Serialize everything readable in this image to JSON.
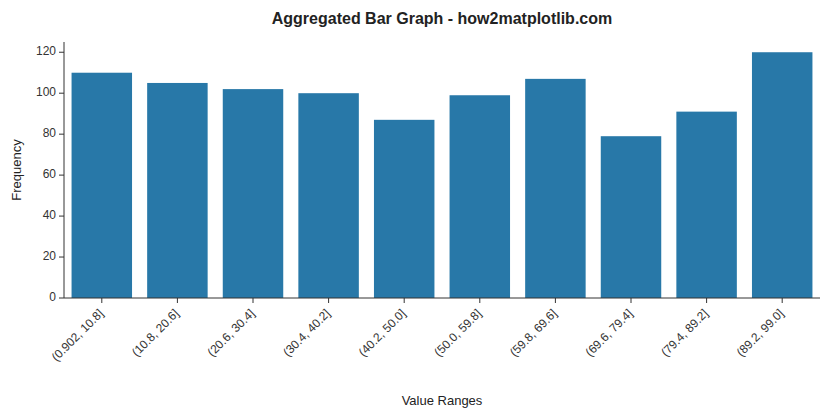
{
  "chart_data": {
    "type": "bar",
    "title": "Aggregated Bar Graph - how2matplotlib.com",
    "xlabel": "Value Ranges",
    "ylabel": "Frequency",
    "categories": [
      "(0.902, 10.8]",
      "(10.8, 20.6]",
      "(20.6, 30.4]",
      "(30.4, 40.2]",
      "(40.2, 50.0]",
      "(50.0, 59.8]",
      "(59.8, 69.6]",
      "(69.6, 79.4]",
      "(79.4, 89.2]",
      "(89.2, 99.0]"
    ],
    "values": [
      110,
      105,
      102,
      100,
      87,
      99,
      107,
      79,
      91,
      120
    ],
    "color": "#2878a8",
    "ylim": [
      0,
      125
    ],
    "yticks": [
      0,
      20,
      40,
      60,
      80,
      100,
      120
    ],
    "grid": false
  }
}
